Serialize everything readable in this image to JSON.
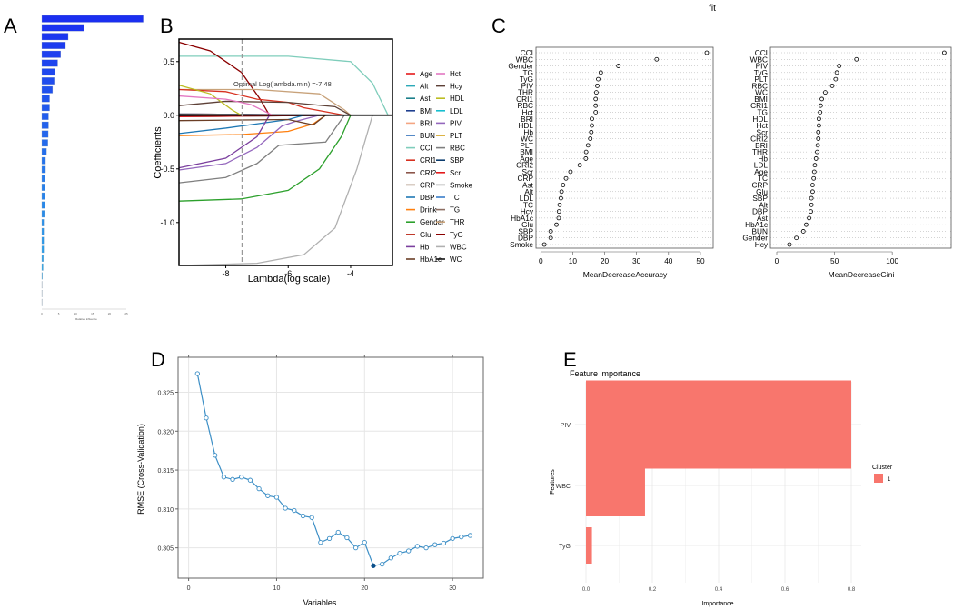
{
  "panel_labels": {
    "a": "A",
    "b": "B",
    "c": "C",
    "d": "D",
    "e": "E"
  },
  "chart_data": [
    {
      "id": "A",
      "type": "bar",
      "orientation": "horizontal",
      "xlabel": "Relative influence",
      "xticks": [
        0,
        5,
        10,
        15,
        20,
        25
      ],
      "values": [
        30,
        12.4,
        7.8,
        7,
        5.6,
        4.7,
        3.8,
        3.7,
        3.2,
        2.3,
        2.3,
        2,
        2,
        1.9,
        1.8,
        1.4,
        1.1,
        1.1,
        1,
        1,
        0.9,
        0.9,
        0.8,
        0.6,
        0.6,
        0.6,
        0.6,
        0.5,
        0.4,
        0.2,
        0.1,
        0.1,
        0.05
      ],
      "colors": {
        "start": "#1b2ff0",
        "end": "#30b6e6"
      }
    },
    {
      "id": "B",
      "type": "line",
      "xlabel": "Lambda(log scale)",
      "ylabel": "Coefficients",
      "xlim": [
        -9.5,
        -2.66
      ],
      "ylim": [
        -1.4,
        0.71
      ],
      "xticks": [
        -8,
        -6,
        -4
      ],
      "yticks": [
        0.5,
        0.0,
        -0.5,
        -1.0
      ],
      "ytick_labels": [
        "0.5",
        "0.0",
        "-0.5",
        "-1.0"
      ],
      "annotation": "Optimal Log(lambda.min) =-7.48",
      "lambda_min": -7.48,
      "legend": [
        {
          "name": "Age",
          "color": "#e41a1c"
        },
        {
          "name": "Alt",
          "color": "#2ca9b8"
        },
        {
          "name": "Ast",
          "color": "#1b7f8a"
        },
        {
          "name": "BMI",
          "color": "#1f3f8f"
        },
        {
          "name": "BRI",
          "color": "#f4a582"
        },
        {
          "name": "BUN",
          "color": "#2b6cb8"
        },
        {
          "name": "CCI",
          "color": "#7fcdbb"
        },
        {
          "name": "CRI1",
          "color": "#d7301f"
        },
        {
          "name": "CRI2",
          "color": "#8c564b"
        },
        {
          "name": "CRP",
          "color": "#a0826d"
        },
        {
          "name": "DBP",
          "color": "#1f78b4"
        },
        {
          "name": "Drink",
          "color": "#ff7f0e"
        },
        {
          "name": "Gender",
          "color": "#2ca02c"
        },
        {
          "name": "Glu",
          "color": "#c0392b"
        },
        {
          "name": "Hb",
          "color": "#7b3f9e"
        },
        {
          "name": "HbA1c",
          "color": "#6b3e26"
        },
        {
          "name": "Hct",
          "color": "#e377c2"
        },
        {
          "name": "Hcy",
          "color": "#5d4037"
        },
        {
          "name": "HDL",
          "color": "#bcbd22"
        },
        {
          "name": "LDL",
          "color": "#17becf"
        },
        {
          "name": "PIV",
          "color": "#9467bd"
        },
        {
          "name": "PLT",
          "color": "#d4a017"
        },
        {
          "name": "RBC",
          "color": "#7f7f7f"
        },
        {
          "name": "SBP",
          "color": "#0b3c6e"
        },
        {
          "name": "Scr",
          "color": "#e31a1c"
        },
        {
          "name": "Smoke",
          "color": "#9e9e9e"
        },
        {
          "name": "TC",
          "color": "#3a7dc9"
        },
        {
          "name": "TG",
          "color": "#8d6e63"
        },
        {
          "name": "THR",
          "color": "#c8a27a"
        },
        {
          "name": "TyG",
          "color": "#8b0000"
        },
        {
          "name": "WBC",
          "color": "#b0b0b0"
        },
        {
          "name": "WC",
          "color": "#111111"
        }
      ],
      "series": [
        {
          "name": "CCI",
          "x": [
            -9.5,
            -6,
            -4,
            -3.3,
            -2.8
          ],
          "y": [
            0.55,
            0.55,
            0.5,
            0.3,
            0
          ]
        },
        {
          "name": "TyG",
          "x": [
            -9.5,
            -8.5,
            -7.5,
            -6.9,
            -6.6
          ],
          "y": [
            0.68,
            0.6,
            0.4,
            0.15,
            0
          ]
        },
        {
          "name": "THR",
          "x": [
            -9.5,
            -7,
            -5,
            -4.2,
            -4
          ],
          "y": [
            0.24,
            0.24,
            0.2,
            0.05,
            0
          ]
        },
        {
          "name": "CRI1",
          "x": [
            -9.5,
            -8,
            -7,
            -6,
            -5.5,
            -4.2
          ],
          "y": [
            0.24,
            0.22,
            0.15,
            0.12,
            0.07,
            0
          ]
        },
        {
          "name": "Hcy",
          "x": [
            -9.5,
            -8,
            -6,
            -4.5,
            -4
          ],
          "y": [
            0.09,
            0.13,
            0.12,
            0.08,
            0
          ]
        },
        {
          "name": "HDL",
          "x": [
            -9.5,
            -8.5,
            -7.8,
            -7.5
          ],
          "y": [
            0.28,
            0.2,
            0.05,
            0
          ]
        },
        {
          "name": "Hct",
          "x": [
            -9.5,
            -8,
            -7.2,
            -6.5
          ],
          "y": [
            0.18,
            0.15,
            0.1,
            0
          ]
        },
        {
          "name": "DBP",
          "x": [
            -9.5,
            -8,
            -7,
            -6,
            -5.5
          ],
          "y": [
            -0.17,
            -0.12,
            -0.08,
            -0.04,
            0
          ]
        },
        {
          "name": "Drink",
          "x": [
            -9.5,
            -7.5,
            -6,
            -5.2,
            -4.8
          ],
          "y": [
            -0.19,
            -0.18,
            -0.15,
            -0.08,
            0
          ]
        },
        {
          "name": "Hb",
          "x": [
            -9.5,
            -8,
            -7,
            -6.6
          ],
          "y": [
            -0.49,
            -0.4,
            -0.2,
            0
          ]
        },
        {
          "name": "PIV",
          "x": [
            -9.5,
            -8,
            -7,
            -6.2,
            -5.8,
            -5
          ],
          "y": [
            -0.51,
            -0.45,
            -0.3,
            -0.1,
            -0.06,
            0
          ]
        },
        {
          "name": "RBC",
          "x": [
            -9.5,
            -8,
            -7,
            -6.3,
            -4.8,
            -4.2
          ],
          "y": [
            -0.63,
            -0.58,
            -0.45,
            -0.28,
            -0.25,
            0
          ]
        },
        {
          "name": "Gender",
          "x": [
            -9.5,
            -7.5,
            -6,
            -5,
            -4.3,
            -4
          ],
          "y": [
            -0.8,
            -0.78,
            -0.7,
            -0.5,
            -0.2,
            0
          ]
        },
        {
          "name": "WBC",
          "x": [
            -9.5,
            -7,
            -5.5,
            -4.5,
            -3.8,
            -3.3
          ],
          "y": [
            -1.4,
            -1.38,
            -1.3,
            -1.05,
            -0.5,
            0
          ]
        },
        {
          "name": "HbA1c",
          "x": [
            -9.5,
            -6,
            -5.2,
            -4.8
          ],
          "y": [
            -0.05,
            -0.04,
            -0.09,
            0
          ]
        }
      ]
    },
    {
      "id": "C1",
      "type": "scatter",
      "title": "fit",
      "xlabel": "MeanDecreaseAccuracy",
      "xticks": [
        0,
        10,
        20,
        30,
        40,
        50
      ],
      "xlim": [
        -1.5,
        54
      ],
      "categories": [
        "CCI",
        "WBC",
        "Gender",
        "TG",
        "TyG",
        "PIV",
        "THR",
        "CRI1",
        "RBC",
        "Hct",
        "BRI",
        "HDL",
        "Hb",
        "WC",
        "PLT",
        "BMI",
        "Age",
        "CRI2",
        "Scr",
        "CRP",
        "Ast",
        "Alt",
        "LDL",
        "TC",
        "Hcy",
        "HbA1c",
        "Glu",
        "SBP",
        "DBP",
        "Smoke"
      ],
      "values": [
        52,
        36.3,
        24.3,
        18.8,
        18,
        17.7,
        17.4,
        17.2,
        17.2,
        17.2,
        16,
        16,
        15.8,
        15.5,
        14.8,
        14.2,
        14.1,
        12.2,
        9.3,
        7.9,
        7,
        6.5,
        6.3,
        5.9,
        5.7,
        5.6,
        4.9,
        3.1,
        3.1,
        1.1
      ]
    },
    {
      "id": "C2",
      "type": "scatter",
      "xlabel": "MeanDecreaseGini",
      "xticks": [
        0,
        50,
        100
      ],
      "xlim": [
        -5.5,
        151
      ],
      "categories": [
        "CCI",
        "WBC",
        "PIV",
        "TyG",
        "PLT",
        "RBC",
        "WC",
        "BMI",
        "CRI1",
        "TG",
        "HDL",
        "Hct",
        "Scr",
        "CRI2",
        "BRI",
        "THR",
        "Hb",
        "LDL",
        "Age",
        "TC",
        "CRP",
        "Glu",
        "SBP",
        "Alt",
        "DBP",
        "Ast",
        "HbA1c",
        "BUN",
        "Gender",
        "Hcy"
      ],
      "values": [
        145,
        69,
        54,
        52,
        51,
        48,
        42,
        39,
        38,
        37.5,
        36.5,
        36.5,
        36,
        36,
        35.5,
        35,
        34,
        33,
        32.5,
        32,
        31,
        31,
        30,
        30,
        29.5,
        28,
        25.5,
        23,
        17,
        11
      ]
    },
    {
      "id": "D",
      "type": "line",
      "xlabel": "Variables",
      "ylabel": "RMSE (Cross-Validation)",
      "xticks": [
        0,
        10,
        20,
        30
      ],
      "yticks": [
        0.305,
        0.31,
        0.315,
        0.32,
        0.325
      ],
      "ytick_labels": [
        "0.305",
        "0.310",
        "0.315",
        "0.320",
        "0.325"
      ],
      "xlim": [
        -1.2,
        33.5
      ],
      "ylim": [
        0.3011,
        0.3295
      ],
      "best": 21,
      "x": [
        1,
        2,
        3,
        4,
        5,
        6,
        7,
        8,
        9,
        10,
        11,
        12,
        13,
        14,
        15,
        16,
        17,
        18,
        19,
        20,
        21,
        22,
        23,
        24,
        25,
        26,
        27,
        28,
        29,
        30,
        31,
        32
      ],
      "y": [
        0.3274,
        0.3217,
        0.3169,
        0.3141,
        0.3138,
        0.3141,
        0.3137,
        0.3126,
        0.3117,
        0.3115,
        0.3101,
        0.3098,
        0.3091,
        0.3089,
        0.3057,
        0.3062,
        0.307,
        0.3063,
        0.305,
        0.3057,
        0.3027,
        0.3029,
        0.3037,
        0.3043,
        0.3046,
        0.3052,
        0.305,
        0.3054,
        0.3056,
        0.3062,
        0.3064,
        0.3066
      ]
    },
    {
      "id": "E",
      "type": "bar",
      "orientation": "horizontal",
      "title": "Feature importance",
      "xlabel": "Importance",
      "ylabel": "Features",
      "categories": [
        "PIV",
        "WBC",
        "TyG"
      ],
      "values": [
        0.8,
        0.178,
        0.018
      ],
      "xticks": [
        0.0,
        0.2,
        0.4,
        0.6,
        0.8
      ],
      "xtick_labels": [
        "0.0",
        "0.2",
        "0.4",
        "0.6",
        "0.8"
      ],
      "legend_title": "Cluster",
      "legend": [
        {
          "name": "1",
          "color": "#f8766d"
        }
      ]
    }
  ]
}
